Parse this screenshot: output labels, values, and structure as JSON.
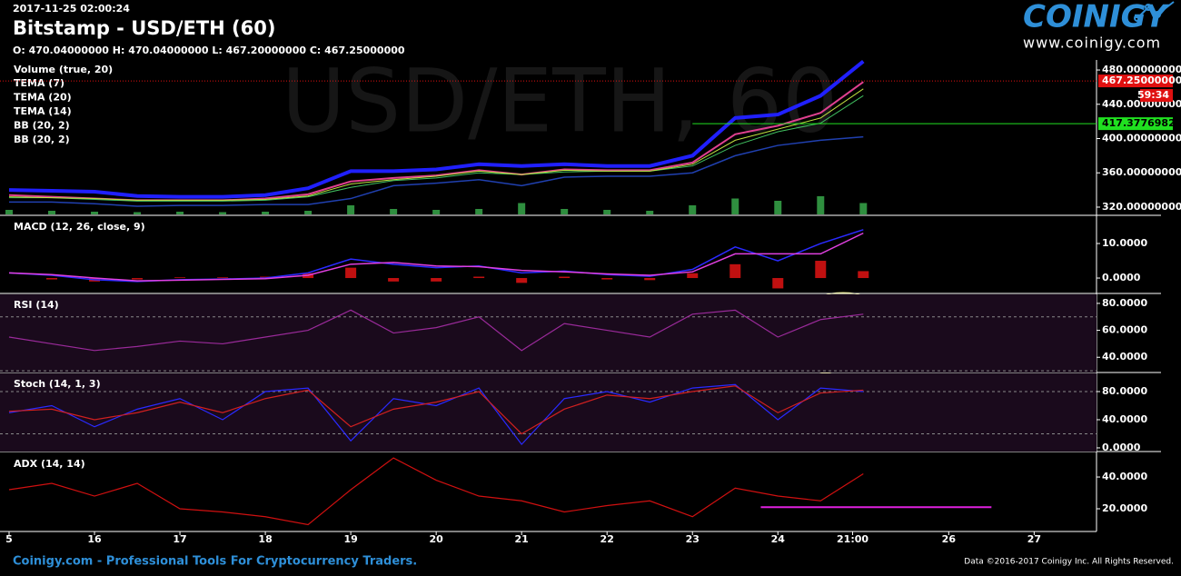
{
  "header": {
    "timestamp": "2017-11-25 02:00:24",
    "title": "Bitstamp - USD/ETH (60)",
    "ohlc": "O: 470.04000000 H: 470.04000000 L: 467.20000000 C: 467.25000000"
  },
  "logo": {
    "name": "COINIGY",
    "url": "www.coinigy.com"
  },
  "watermark": "USD/ETH, 60",
  "footer": {
    "left": "Coinigy.com - Professional Tools For Cryptocurrency Traders.",
    "right": "Data ©2016-2017 Coinigy Inc. All Rights Reserved."
  },
  "x_axis": {
    "xlim": [
      15,
      27.73
    ],
    "xticks": [
      {
        "value": 15,
        "label": "5"
      },
      16,
      17,
      18,
      19,
      20,
      21,
      22,
      23,
      24,
      {
        "value": 24.875,
        "label": "21:00"
      },
      26,
      27
    ],
    "x": [
      15,
      15.5,
      16,
      16.5,
      17,
      17.5,
      18,
      18.5,
      19,
      19.5,
      20,
      20.5,
      21,
      21.5,
      22,
      22.5,
      23,
      23.5,
      24,
      24.5,
      25
    ]
  },
  "chart_data": [
    {
      "type": "line",
      "title": "Volume (true, 20)",
      "ylim": [
        311.5,
        491.7
      ],
      "yticks": [
        {
          "value": 320,
          "label": "320.00000000"
        },
        {
          "value": 360,
          "label": "360.00000000"
        },
        {
          "value": 400,
          "label": "400.00000000"
        },
        {
          "value": 440,
          "label": "440.00000000"
        },
        {
          "value": 480,
          "label": "480.00000000"
        }
      ],
      "volume": {
        "color": "#2f8f3f",
        "ylim": [
          0,
          100
        ],
        "values": [
          10,
          8,
          6,
          5,
          6,
          5,
          6,
          8,
          20,
          12,
          10,
          12,
          25,
          12,
          10,
          8,
          20,
          35,
          30,
          40,
          25
        ]
      },
      "series": [
        {
          "name": "TEMA (7)",
          "color": "#e04090",
          "width": 2,
          "values": [
            334,
            332,
            330,
            328,
            328,
            328,
            330,
            335,
            350,
            354,
            357,
            363,
            358,
            364,
            363,
            363,
            372,
            405,
            415,
            430,
            466
          ]
        },
        {
          "name": "TEMA (20)",
          "color": "#40c060",
          "width": 1,
          "values": [
            331,
            331,
            329,
            327,
            327,
            327,
            328,
            332,
            343,
            351,
            354,
            360,
            358,
            361,
            362,
            362,
            368,
            392,
            408,
            418,
            450
          ]
        },
        {
          "name": "TEMA (14)",
          "color": "#c0e040",
          "width": 1,
          "values": [
            332,
            331,
            330,
            328,
            328,
            328,
            329,
            333,
            347,
            352,
            356,
            362,
            358,
            363,
            362,
            362,
            370,
            398,
            411,
            424,
            458
          ]
        },
        {
          "name": "BB (20, 2)",
          "color": "#2020ff",
          "width": 4,
          "values": [
            340,
            339,
            338,
            333,
            332,
            332,
            334,
            342,
            362,
            362,
            364,
            370,
            368,
            370,
            368,
            368,
            380,
            424,
            428,
            450,
            490
          ]
        },
        {
          "name": "BB (20, 2)",
          "color": "#2040b0",
          "width": 1.5,
          "values": [
            326,
            326,
            324,
            321,
            322,
            322,
            323,
            323,
            330,
            345,
            348,
            352,
            345,
            355,
            356,
            356,
            360,
            380,
            392,
            398,
            402
          ]
        }
      ],
      "last_price": {
        "value": 467.25,
        "label": "467.25000000",
        "color": "#e01010"
      },
      "countdown": "59:34",
      "hline": {
        "value": 417.37769829,
        "label": "417.37769829",
        "x_start": 23,
        "color": "#20e020"
      }
    },
    {
      "type": "macd",
      "title": "MACD (12, 26, close, 9)",
      "ylim": [
        -4.2,
        17.9
      ],
      "yticks": [
        {
          "value": 0,
          "label": "0.0000"
        },
        {
          "value": 10,
          "label": "10.0000"
        }
      ],
      "macd": {
        "color": "#2a2aff",
        "values": [
          1.5,
          0.8,
          -0.5,
          -1,
          -0.5,
          -0.3,
          0,
          1.5,
          5.5,
          4,
          3,
          3.5,
          1.5,
          2,
          1,
          0.5,
          2.5,
          9,
          5,
          10,
          14
        ]
      },
      "signal": {
        "color": "#e040e0",
        "values": [
          1.5,
          1,
          0,
          -0.8,
          -0.6,
          -0.4,
          -0.2,
          0.8,
          4,
          4.5,
          3.5,
          3.3,
          2.2,
          1.8,
          1.2,
          0.8,
          1.8,
          7,
          7,
          7,
          13
        ]
      },
      "histogram": {
        "color": "#c01010",
        "values": [
          0,
          -0.4,
          -1,
          -0.4,
          0.2,
          0.2,
          0.4,
          1.4,
          3,
          -1,
          -1,
          0.4,
          -1.4,
          0.4,
          -0.4,
          -0.6,
          1.4,
          4,
          -3,
          5,
          2
        ]
      }
    },
    {
      "type": "oscillator",
      "title": "RSI (14)",
      "ylim": [
        28.7,
        86.7
      ],
      "yticks": [
        {
          "value": 40,
          "label": "40.0000"
        },
        {
          "value": 60,
          "label": "60.0000"
        },
        {
          "value": 80,
          "label": "80.0000"
        }
      ],
      "bands": [
        30,
        70
      ],
      "series": [
        {
          "color": "#9a2a9a",
          "values": [
            55,
            50,
            45,
            48,
            52,
            50,
            55,
            60,
            75,
            58,
            62,
            70,
            45,
            65,
            60,
            55,
            72,
            75,
            55,
            68,
            72
          ]
        }
      ]
    },
    {
      "type": "oscillator",
      "title": "Stoch (14, 1, 3)",
      "ylim": [
        -5.2,
        105.8
      ],
      "yticks": [
        {
          "value": 0,
          "label": "0.0000"
        },
        {
          "value": 40,
          "label": "40.0000"
        },
        {
          "value": 80,
          "label": "80.0000"
        }
      ],
      "bands": [
        20,
        80
      ],
      "series": [
        {
          "color": "#2a2aff",
          "values": [
            50,
            60,
            30,
            55,
            70,
            40,
            80,
            85,
            10,
            70,
            60,
            85,
            5,
            70,
            80,
            65,
            85,
            90,
            40,
            85,
            80
          ]
        },
        {
          "color": "#d02020",
          "values": [
            52,
            55,
            40,
            50,
            65,
            50,
            70,
            82,
            30,
            55,
            65,
            80,
            20,
            55,
            75,
            70,
            80,
            88,
            50,
            78,
            82
          ]
        }
      ]
    },
    {
      "type": "oscillator",
      "title": "ADX (14, 14)",
      "ylim": [
        5.7,
        54.9
      ],
      "yticks": [
        {
          "value": 20,
          "label": "20.0000"
        },
        {
          "value": 40,
          "label": "40.0000"
        }
      ],
      "series": [
        {
          "color": "#d01010",
          "values": [
            32,
            36,
            28,
            36,
            20,
            18,
            15,
            10,
            32,
            52,
            38,
            28,
            25,
            18,
            22,
            25,
            15,
            33,
            28,
            25,
            42
          ]
        }
      ],
      "segment": {
        "x": [
          23.8,
          26.5
        ],
        "value": 21,
        "color": "#e020e0"
      }
    }
  ]
}
